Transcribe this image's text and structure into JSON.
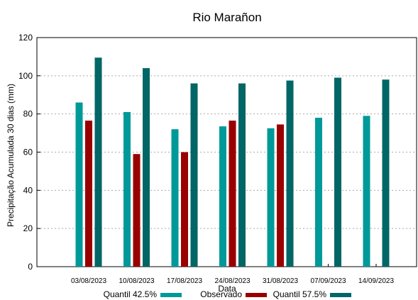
{
  "chart_data": {
    "type": "bar",
    "title": "Rio Marañon",
    "xlabel": "Data",
    "ylabel": "Precipitação Acumulada 30 dias (mm)",
    "ylim": [
      0,
      120
    ],
    "yticks": [
      0,
      20,
      40,
      60,
      80,
      100,
      120
    ],
    "grid": true,
    "legend_position": "bottom",
    "categories": [
      "03/08/2023",
      "10/08/2023",
      "17/08/2023",
      "24/08/2023",
      "31/08/2023",
      "07/09/2023",
      "14/09/2023"
    ],
    "series": [
      {
        "name": "Quantil 42.5%",
        "color": "#009999",
        "values": [
          86,
          81,
          72,
          73.5,
          72.5,
          78,
          79
        ]
      },
      {
        "name": "Observado",
        "color": "#990000",
        "values": [
          76.5,
          59,
          60,
          76.5,
          74.5,
          null,
          null
        ]
      },
      {
        "name": "Quantil 57.5%",
        "color": "#006666",
        "values": [
          109.5,
          104,
          96,
          96,
          97.5,
          99,
          98
        ]
      }
    ]
  }
}
